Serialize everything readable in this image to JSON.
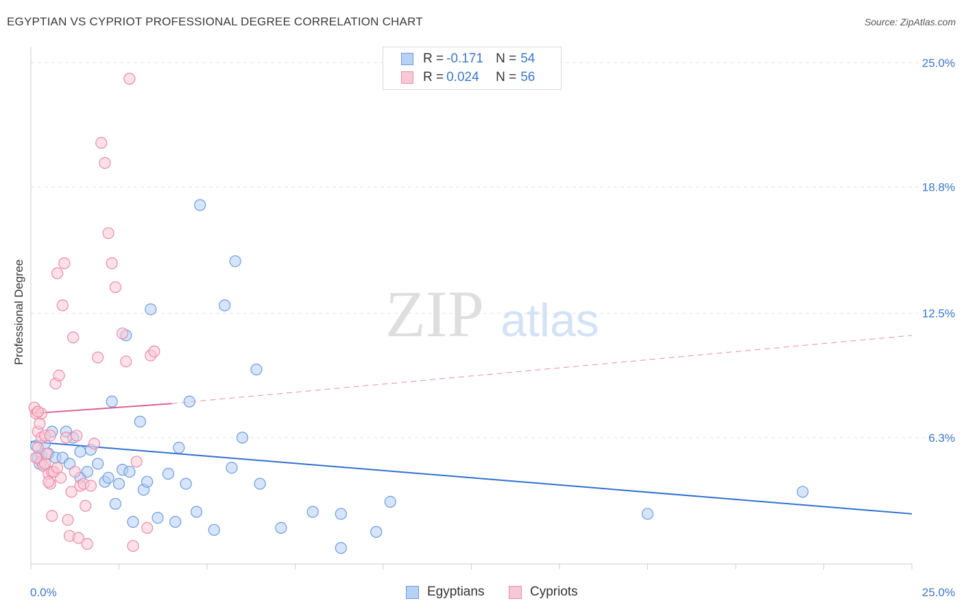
{
  "title": "EGYPTIAN VS CYPRIOT PROFESSIONAL DEGREE CORRELATION CHART",
  "source": "Source: ZipAtlas.com",
  "watermark": {
    "zip": "ZIP",
    "atlas": "atlas"
  },
  "legend": {
    "rows": [
      {
        "r_label": "R =",
        "r_value": "-0.171",
        "n_label": "N =",
        "n_value": "54",
        "fill": "#b7d0f5",
        "stroke": "#6b9be0"
      },
      {
        "r_label": "R =",
        "r_value": "0.024",
        "n_label": "N =",
        "n_value": "56",
        "fill": "#f9c8d6",
        "stroke": "#e98aa8"
      }
    ]
  },
  "chart_data": {
    "type": "scatter",
    "title": "EGYPTIAN VS CYPRIOT PROFESSIONAL DEGREE CORRELATION CHART",
    "xlabel": "",
    "ylabel": "Professional Degree",
    "xlim": [
      0,
      25
    ],
    "ylim": [
      0,
      25.8
    ],
    "x_tick_labels": [
      "0.0%",
      "25.0%"
    ],
    "y_tick_values": [
      6.3,
      12.5,
      18.8,
      25.0
    ],
    "y_tick_labels": [
      "6.3%",
      "12.5%",
      "18.8%",
      "25.0%"
    ],
    "series": [
      {
        "name": "Egyptians",
        "color": "#6b9be0",
        "fill": "#b7d0f5",
        "points": [
          [
            0.2,
            5.3
          ],
          [
            0.3,
            5.4
          ],
          [
            0.4,
            6.0
          ],
          [
            0.5,
            5.5
          ],
          [
            0.6,
            6.6
          ],
          [
            0.7,
            5.3
          ],
          [
            0.9,
            5.3
          ],
          [
            1.0,
            6.6
          ],
          [
            1.1,
            5.0
          ],
          [
            1.2,
            6.3
          ],
          [
            1.4,
            5.6
          ],
          [
            1.4,
            4.3
          ],
          [
            1.6,
            4.6
          ],
          [
            1.7,
            5.7
          ],
          [
            1.9,
            5.0
          ],
          [
            2.1,
            4.1
          ],
          [
            2.2,
            4.3
          ],
          [
            2.3,
            8.1
          ],
          [
            2.4,
            3.0
          ],
          [
            2.5,
            4.0
          ],
          [
            2.6,
            4.7
          ],
          [
            2.7,
            11.4
          ],
          [
            2.8,
            4.6
          ],
          [
            2.9,
            2.1
          ],
          [
            3.1,
            7.1
          ],
          [
            3.2,
            3.7
          ],
          [
            3.3,
            4.1
          ],
          [
            3.4,
            12.7
          ],
          [
            3.6,
            2.3
          ],
          [
            3.9,
            4.5
          ],
          [
            4.1,
            2.1
          ],
          [
            4.2,
            5.8
          ],
          [
            4.4,
            4.0
          ],
          [
            4.5,
            8.1
          ],
          [
            4.7,
            2.6
          ],
          [
            4.8,
            17.9
          ],
          [
            5.2,
            1.7
          ],
          [
            5.5,
            12.9
          ],
          [
            5.7,
            4.8
          ],
          [
            5.8,
            15.1
          ],
          [
            6.0,
            6.3
          ],
          [
            6.4,
            9.7
          ],
          [
            6.5,
            4.0
          ],
          [
            7.1,
            1.8
          ],
          [
            8.0,
            2.6
          ],
          [
            8.8,
            0.8
          ],
          [
            8.8,
            2.5
          ],
          [
            9.8,
            1.6
          ],
          [
            10.2,
            3.1
          ],
          [
            17.5,
            2.5
          ],
          [
            21.9,
            3.6
          ],
          [
            0.15,
            5.9
          ],
          [
            0.25,
            5.0
          ],
          [
            0.35,
            4.9
          ]
        ],
        "trend": {
          "x": [
            0,
            25
          ],
          "y": [
            6.1,
            2.5
          ],
          "style": "solid"
        }
      },
      {
        "name": "Cypriots",
        "color": "#e98aa8",
        "fill": "#f9c8d6",
        "points": [
          [
            0.1,
            7.8
          ],
          [
            0.15,
            7.5
          ],
          [
            0.2,
            6.6
          ],
          [
            0.2,
            5.8
          ],
          [
            0.25,
            7.0
          ],
          [
            0.3,
            6.3
          ],
          [
            0.3,
            5.1
          ],
          [
            0.35,
            4.9
          ],
          [
            0.4,
            5.0
          ],
          [
            0.45,
            5.5
          ],
          [
            0.5,
            4.5
          ],
          [
            0.55,
            4.0
          ],
          [
            0.6,
            4.6
          ],
          [
            0.6,
            2.4
          ],
          [
            0.7,
            9.0
          ],
          [
            0.75,
            14.5
          ],
          [
            0.8,
            9.4
          ],
          [
            0.85,
            4.3
          ],
          [
            0.9,
            12.9
          ],
          [
            0.95,
            15.0
          ],
          [
            1.0,
            6.3
          ],
          [
            1.05,
            2.2
          ],
          [
            1.1,
            1.4
          ],
          [
            1.15,
            3.6
          ],
          [
            1.2,
            11.3
          ],
          [
            1.3,
            6.4
          ],
          [
            1.35,
            1.3
          ],
          [
            1.4,
            3.9
          ],
          [
            1.5,
            4.0
          ],
          [
            1.55,
            2.9
          ],
          [
            1.6,
            1.0
          ],
          [
            1.7,
            3.9
          ],
          [
            1.8,
            6.0
          ],
          [
            1.9,
            10.3
          ],
          [
            2.0,
            21.0
          ],
          [
            2.1,
            20.0
          ],
          [
            2.2,
            16.5
          ],
          [
            2.3,
            15.0
          ],
          [
            2.4,
            13.8
          ],
          [
            2.6,
            11.5
          ],
          [
            2.7,
            10.1
          ],
          [
            2.8,
            24.2
          ],
          [
            2.9,
            0.9
          ],
          [
            3.0,
            5.1
          ],
          [
            3.3,
            1.8
          ],
          [
            3.4,
            10.4
          ],
          [
            3.5,
            10.6
          ],
          [
            0.5,
            4.1
          ],
          [
            0.65,
            4.6
          ],
          [
            0.3,
            7.5
          ],
          [
            0.2,
            7.6
          ],
          [
            0.4,
            6.4
          ],
          [
            0.55,
            6.4
          ],
          [
            0.15,
            5.3
          ],
          [
            0.75,
            4.8
          ],
          [
            1.25,
            4.6
          ]
        ],
        "trend_solid": {
          "x": [
            0,
            4.0
          ],
          "y": [
            7.5,
            8.0
          ]
        },
        "trend_dashed": {
          "x": [
            4.0,
            25
          ],
          "y": [
            8.0,
            11.4
          ]
        }
      }
    ]
  },
  "bottom_legend": [
    {
      "label": "Egyptians",
      "fill": "#b7d0f5",
      "stroke": "#6b9be0"
    },
    {
      "label": "Cypriots",
      "fill": "#f9c8d6",
      "stroke": "#e98aa8"
    }
  ]
}
